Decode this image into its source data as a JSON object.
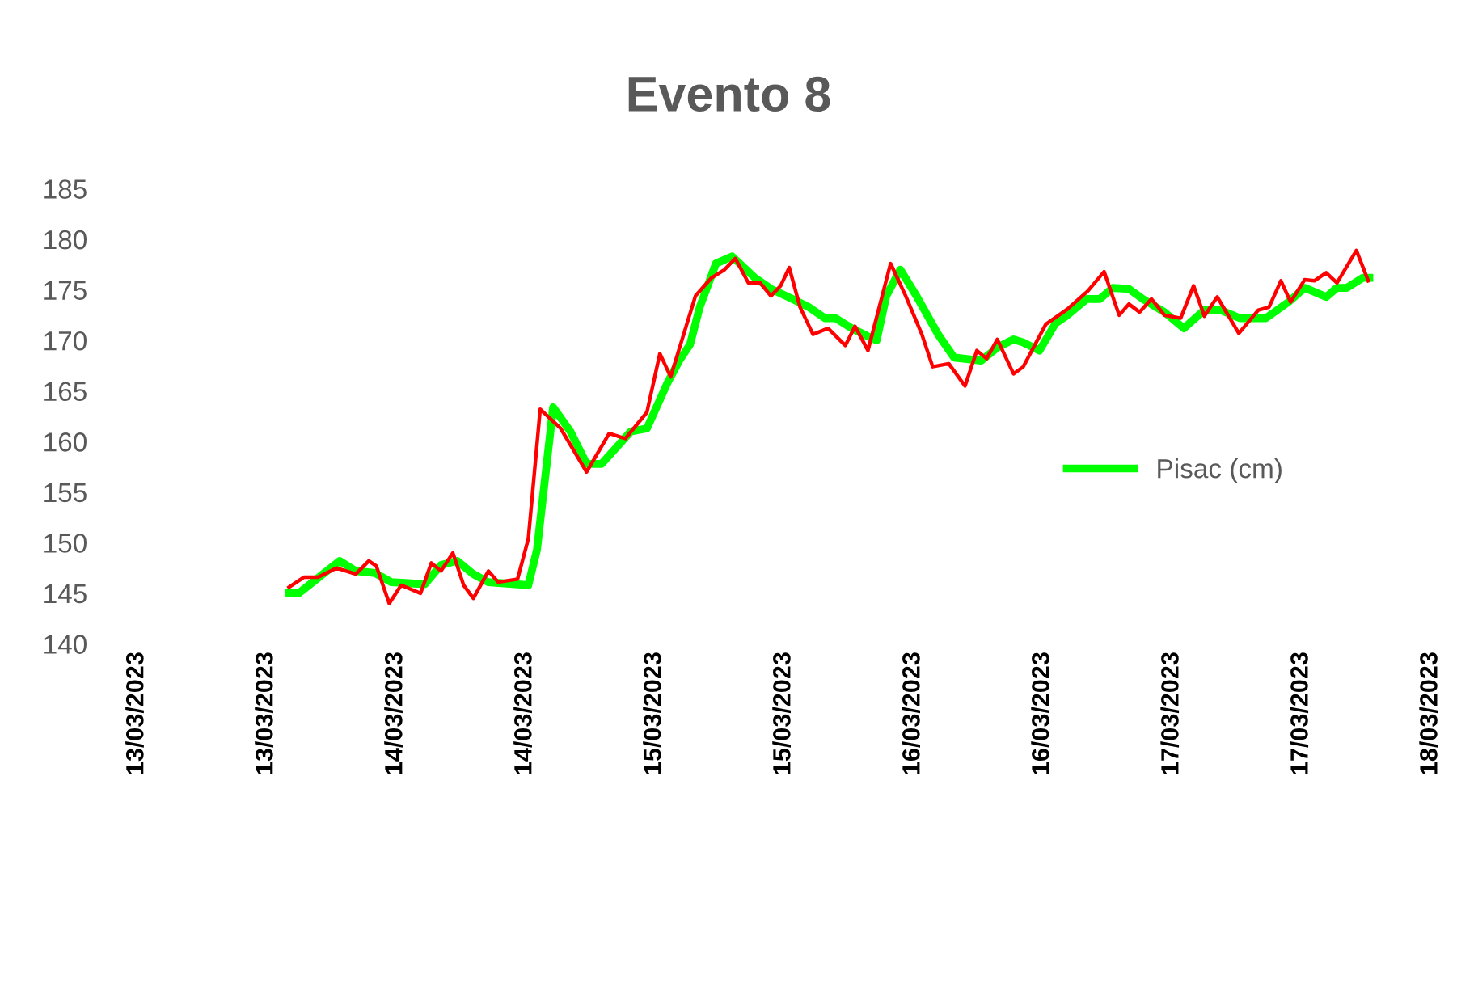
{
  "chart_data": {
    "type": "line",
    "title": "Evento 8",
    "xlim": [
      "2023-03-13T00:00",
      "2023-03-18T00:00"
    ],
    "xticks": [
      {
        "value": "2023-03-13T00:00",
        "label": "13/03/2023"
      },
      {
        "value": "2023-03-13T12:00",
        "label": "13/03/2023"
      },
      {
        "value": "2023-03-14T00:00",
        "label": "14/03/2023"
      },
      {
        "value": "2023-03-14T12:00",
        "label": "14/03/2023"
      },
      {
        "value": "2023-03-15T00:00",
        "label": "15/03/2023"
      },
      {
        "value": "2023-03-15T12:00",
        "label": "15/03/2023"
      },
      {
        "value": "2023-03-16T00:00",
        "label": "16/03/2023"
      },
      {
        "value": "2023-03-16T12:00",
        "label": "16/03/2023"
      },
      {
        "value": "2023-03-17T00:00",
        "label": "17/03/2023"
      },
      {
        "value": "2023-03-17T12:00",
        "label": "17/03/2023"
      },
      {
        "value": "2023-03-18T00:00",
        "label": "18/03/2023"
      }
    ],
    "ylim": [
      140,
      185
    ],
    "yticks": [
      140,
      145,
      150,
      155,
      160,
      165,
      170,
      175,
      180,
      185
    ],
    "grid": false,
    "legend": "right",
    "marker": "none",
    "line_style": "solid",
    "series": [
      {
        "name": "Pisac (cm)",
        "color": "#00ff00",
        "x": [
          "2023-03-13T14:06",
          "2023-03-13T15:00",
          "2023-03-13T18:48",
          "2023-03-13T20:18",
          "2023-03-13T22:06",
          "2023-03-13T23:36",
          "2023-03-14T02:42",
          "2023-03-14T04:12",
          "2023-03-14T05:42",
          "2023-03-14T07:12",
          "2023-03-14T08:36",
          "2023-03-14T12:18",
          "2023-03-14T13:06",
          "2023-03-14T14:36",
          "2023-03-14T16:12",
          "2023-03-14T17:42",
          "2023-03-14T19:06",
          "2023-03-14T21:48",
          "2023-03-14T23:18",
          "2023-03-15T01:12",
          "2023-03-15T02:18",
          "2023-03-15T03:18",
          "2023-03-15T04:12",
          "2023-03-15T05:42",
          "2023-03-15T07:12",
          "2023-03-15T09:18",
          "2023-03-15T10:48",
          "2023-03-15T12:48",
          "2023-03-15T14:18",
          "2023-03-15T15:48",
          "2023-03-15T16:48",
          "2023-03-15T18:18",
          "2023-03-15T19:48",
          "2023-03-15T20:36",
          "2023-03-15T21:30",
          "2023-03-15T22:48",
          "2023-03-16T00:18",
          "2023-03-16T02:18",
          "2023-03-16T03:48",
          "2023-03-16T06:18",
          "2023-03-16T07:48",
          "2023-03-16T09:18",
          "2023-03-16T10:12",
          "2023-03-16T11:42",
          "2023-03-16T13:12",
          "2023-03-16T14:18",
          "2023-03-16T16:06",
          "2023-03-16T17:18",
          "2023-03-16T18:30",
          "2023-03-16T20:00",
          "2023-03-16T21:18",
          "2023-03-16T23:18",
          "2023-03-17T01:06",
          "2023-03-17T03:00",
          "2023-03-17T04:30",
          "2023-03-17T06:18",
          "2023-03-17T08:42",
          "2023-03-17T10:48",
          "2023-03-17T12:18",
          "2023-03-17T14:18",
          "2023-03-17T15:18",
          "2023-03-17T16:12",
          "2023-03-17T17:42",
          "2023-03-17T18:18"
        ],
        "values": [
          145.0,
          145.0,
          148.2,
          147.2,
          147.0,
          146.1,
          145.9,
          147.8,
          148.2,
          146.9,
          146.1,
          145.8,
          149.3,
          163.4,
          161.0,
          157.8,
          157.8,
          161.0,
          161.3,
          165.8,
          168.0,
          169.6,
          173.3,
          177.6,
          178.3,
          176.2,
          175.1,
          174.1,
          173.3,
          172.2,
          172.2,
          171.2,
          170.4,
          170.0,
          174.4,
          177.0,
          174.4,
          170.6,
          168.3,
          168.0,
          169.3,
          170.1,
          169.8,
          169.0,
          171.7,
          172.5,
          174.1,
          174.1,
          175.2,
          175.1,
          174.1,
          172.8,
          171.2,
          173.0,
          173.0,
          172.2,
          172.2,
          173.8,
          175.2,
          174.3,
          175.2,
          175.2,
          176.2,
          176.2
        ]
      },
      {
        "color": "#ff0000",
        "x": [
          "2023-03-13T14:06",
          "2023-03-13T15:30",
          "2023-03-13T16:48",
          "2023-03-13T18:30",
          "2023-03-13T20:18",
          "2023-03-13T21:30",
          "2023-03-13T22:12",
          "2023-03-13T23:24",
          "2023-03-14T00:30",
          "2023-03-14T02:18",
          "2023-03-14T03:18",
          "2023-03-14T04:12",
          "2023-03-14T05:18",
          "2023-03-14T06:18",
          "2023-03-14T07:12",
          "2023-03-14T08:36",
          "2023-03-14T09:30",
          "2023-03-14T11:18",
          "2023-03-14T12:18",
          "2023-03-14T13:24",
          "2023-03-14T15:18",
          "2023-03-14T17:42",
          "2023-03-14T19:48",
          "2023-03-14T21:18",
          "2023-03-14T23:18",
          "2023-03-15T00:30",
          "2023-03-15T01:30",
          "2023-03-15T03:48",
          "2023-03-15T05:18",
          "2023-03-15T06:30",
          "2023-03-15T07:30",
          "2023-03-15T08:42",
          "2023-03-15T09:48",
          "2023-03-15T10:48",
          "2023-03-15T11:42",
          "2023-03-15T12:30",
          "2023-03-15T13:30",
          "2023-03-15T14:42",
          "2023-03-15T16:06",
          "2023-03-15T17:42",
          "2023-03-15T18:36",
          "2023-03-15T19:48",
          "2023-03-15T21:54",
          "2023-03-15T23:18",
          "2023-03-16T00:48",
          "2023-03-16T01:48",
          "2023-03-16T03:18",
          "2023-03-16T04:48",
          "2023-03-16T05:54",
          "2023-03-16T06:48",
          "2023-03-16T07:48",
          "2023-03-16T09:18",
          "2023-03-16T10:12",
          "2023-03-16T12:18",
          "2023-03-16T14:18",
          "2023-03-16T16:12",
          "2023-03-16T17:42",
          "2023-03-16T19:06",
          "2023-03-16T20:00",
          "2023-03-16T21:00",
          "2023-03-16T22:06",
          "2023-03-16T23:18",
          "2023-03-17T00:48",
          "2023-03-17T02:00",
          "2023-03-17T03:00",
          "2023-03-17T04:12",
          "2023-03-17T06:12",
          "2023-03-17T08:00",
          "2023-03-17T09:00",
          "2023-03-17T10:06",
          "2023-03-17T11:00",
          "2023-03-17T12:18",
          "2023-03-17T13:12",
          "2023-03-17T14:18",
          "2023-03-17T15:18",
          "2023-03-17T17:06",
          "2023-03-17T18:12"
        ],
        "values": [
          145.6,
          146.6,
          146.6,
          147.5,
          146.9,
          148.2,
          147.7,
          144.0,
          145.8,
          145.0,
          148.0,
          147.2,
          149.0,
          145.8,
          144.5,
          147.2,
          146.1,
          146.4,
          150.4,
          163.2,
          161.3,
          157.0,
          160.8,
          160.3,
          162.9,
          168.7,
          166.4,
          174.4,
          176.2,
          177.0,
          178.1,
          175.7,
          175.7,
          174.4,
          175.4,
          177.2,
          173.3,
          170.6,
          171.2,
          169.5,
          171.4,
          169.0,
          177.6,
          174.4,
          170.6,
          167.4,
          167.7,
          165.5,
          169.0,
          168.2,
          170.1,
          166.7,
          167.4,
          171.6,
          173.1,
          174.9,
          176.8,
          172.5,
          173.6,
          172.8,
          174.1,
          172.5,
          172.2,
          175.4,
          172.4,
          174.3,
          170.7,
          173.0,
          173.3,
          175.9,
          173.8,
          176.0,
          175.9,
          176.7,
          175.7,
          178.9,
          175.9
        ]
      }
    ]
  }
}
